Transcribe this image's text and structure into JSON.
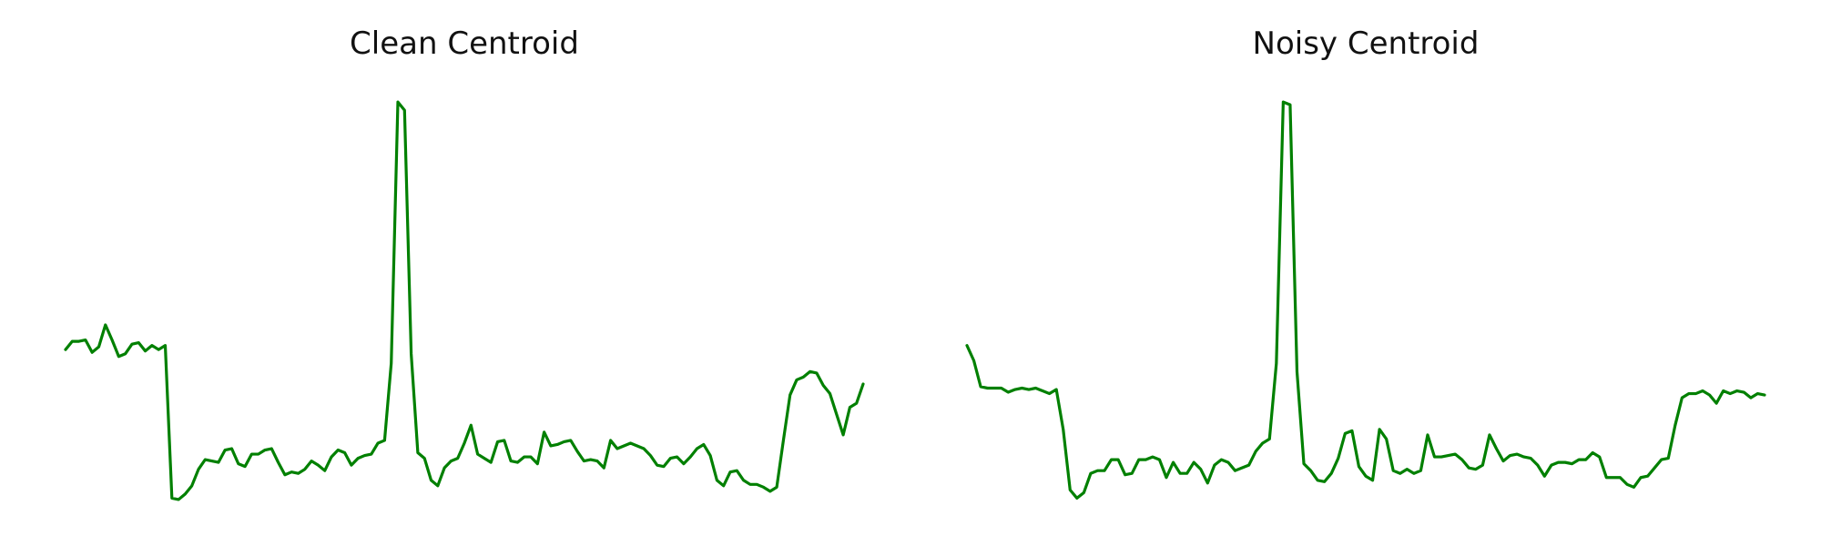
{
  "colors": {
    "line": "#008000",
    "background": "#ffffff"
  },
  "chart_data": [
    {
      "type": "line",
      "title": "Clean Centroid",
      "axes_visible": false,
      "grid": false,
      "ylim": [
        -1.45,
        1.6
      ],
      "series": [
        {
          "values": [
            -0.3,
            -0.24,
            -0.24,
            -0.23,
            -0.32,
            -0.28,
            -0.12,
            -0.23,
            -0.35,
            -0.33,
            -0.26,
            -0.25,
            -0.31,
            -0.27,
            -0.3,
            -0.27,
            -1.38,
            -1.39,
            -1.35,
            -1.29,
            -1.17,
            -1.1,
            -1.11,
            -1.12,
            -1.03,
            -1.02,
            -1.13,
            -1.15,
            -1.06,
            -1.06,
            -1.03,
            -1.02,
            -1.12,
            -1.21,
            -1.19,
            -1.2,
            -1.17,
            -1.11,
            -1.14,
            -1.18,
            -1.08,
            -1.03,
            -1.05,
            -1.14,
            -1.09,
            -1.07,
            -1.06,
            -0.98,
            -0.96,
            -0.4,
            1.5,
            1.44,
            -0.33,
            -1.05,
            -1.09,
            -1.25,
            -1.29,
            -1.16,
            -1.11,
            -1.09,
            -0.98,
            -0.85,
            -1.06,
            -1.09,
            -1.12,
            -0.97,
            -0.96,
            -1.11,
            -1.12,
            -1.08,
            -1.08,
            -1.13,
            -0.9,
            -1.0,
            -0.99,
            -0.97,
            -0.96,
            -1.04,
            -1.11,
            -1.1,
            -1.11,
            -1.16,
            -0.96,
            -1.02,
            -1.0,
            -0.98,
            -1.0,
            -1.02,
            -1.07,
            -1.14,
            -1.15,
            -1.09,
            -1.08,
            -1.13,
            -1.08,
            -1.02,
            -0.99,
            -1.07,
            -1.25,
            -1.29,
            -1.19,
            -1.18,
            -1.25,
            -1.28,
            -1.28,
            -1.3,
            -1.33,
            -1.3,
            -0.96,
            -0.63,
            -0.52,
            -0.5,
            -0.46,
            -0.47,
            -0.56,
            -0.62,
            -0.77,
            -0.92,
            -0.72,
            -0.69,
            -0.55
          ]
        }
      ]
    },
    {
      "type": "line",
      "title": "Noisy Centroid",
      "axes_visible": false,
      "grid": false,
      "ylim": [
        -1.45,
        1.6
      ],
      "series": [
        {
          "values": [
            -0.27,
            -0.38,
            -0.57,
            -0.58,
            -0.58,
            -0.58,
            -0.61,
            -0.59,
            -0.58,
            -0.59,
            -0.58,
            -0.6,
            -0.62,
            -0.59,
            -0.88,
            -1.32,
            -1.38,
            -1.34,
            -1.2,
            -1.18,
            -1.18,
            -1.1,
            -1.1,
            -1.21,
            -1.2,
            -1.1,
            -1.1,
            -1.08,
            -1.1,
            -1.23,
            -1.12,
            -1.2,
            -1.2,
            -1.12,
            -1.17,
            -1.27,
            -1.14,
            -1.1,
            -1.12,
            -1.18,
            -1.16,
            -1.14,
            -1.04,
            -0.98,
            -0.95,
            -0.4,
            1.5,
            1.48,
            -0.46,
            -1.13,
            -1.18,
            -1.25,
            -1.26,
            -1.2,
            -1.09,
            -0.91,
            -0.89,
            -1.15,
            -1.22,
            -1.25,
            -0.88,
            -0.95,
            -1.18,
            -1.2,
            -1.17,
            -1.2,
            -1.18,
            -0.92,
            -1.08,
            -1.08,
            -1.07,
            -1.06,
            -1.1,
            -1.16,
            -1.17,
            -1.14,
            -0.92,
            -1.02,
            -1.11,
            -1.07,
            -1.06,
            -1.08,
            -1.09,
            -1.14,
            -1.22,
            -1.14,
            -1.12,
            -1.12,
            -1.13,
            -1.1,
            -1.1,
            -1.05,
            -1.08,
            -1.23,
            -1.23,
            -1.23,
            -1.28,
            -1.3,
            -1.23,
            -1.22,
            -1.16,
            -1.1,
            -1.09,
            -0.85,
            -0.65,
            -0.62,
            -0.62,
            -0.6,
            -0.63,
            -0.69,
            -0.6,
            -0.62,
            -0.6,
            -0.61,
            -0.65,
            -0.62,
            -0.63
          ]
        }
      ]
    }
  ]
}
